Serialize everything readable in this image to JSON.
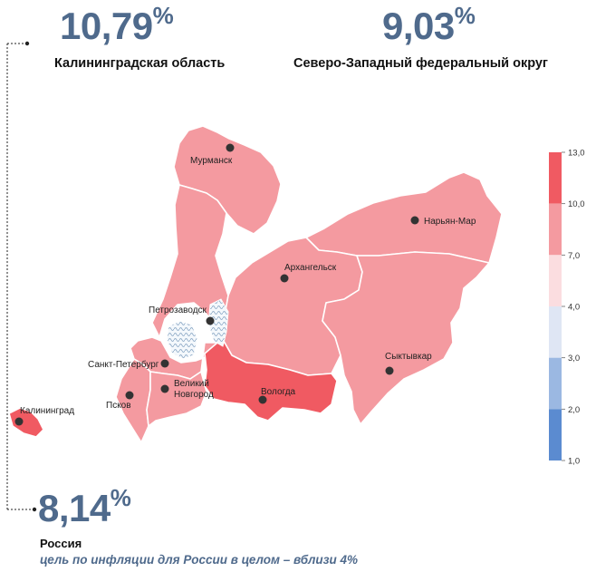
{
  "headline": {
    "left": {
      "value": "10,79",
      "unit": "%",
      "label": "Калининградская область"
    },
    "right": {
      "value": "9,03",
      "unit": "%",
      "label": "Северо-Западный федеральный округ"
    },
    "bottom": {
      "value": "8,14",
      "unit": "%",
      "label": "Россия"
    }
  },
  "note": "цель по инфляции для России в целом – вблизи 4%",
  "cities": [
    "Мурманск",
    "Нарьян-Мар",
    "Архангельск",
    "Петрозаводск",
    "Санкт-Петербург",
    "Сыктывкар",
    "Великий",
    "Новгород",
    "Псков",
    "Вологда",
    "Калининград"
  ],
  "legend": {
    "ticks": [
      "13,0",
      "10,0",
      "7,0",
      "4,0",
      "3,0",
      "2,0",
      "1,0"
    ],
    "bins": [
      {
        "from": "10,0",
        "to": "13,0",
        "color": "#f05a62"
      },
      {
        "from": "7,0",
        "to": "10,0",
        "color": "#f49aa0"
      },
      {
        "from": "4,0",
        "to": "7,0",
        "color": "#fbdde0"
      },
      {
        "from": "3,0",
        "to": "4,0",
        "color": "#dfe6f4"
      },
      {
        "from": "2,0",
        "to": "3,0",
        "color": "#9bb8e2"
      },
      {
        "from": "1,0",
        "to": "2,0",
        "color": "#5b8bd0"
      }
    ]
  },
  "colors": {
    "region_fill": "#f49aa0",
    "region_high": "#f05a62",
    "border": "#ffffff",
    "headline": "#4f6a8c"
  }
}
